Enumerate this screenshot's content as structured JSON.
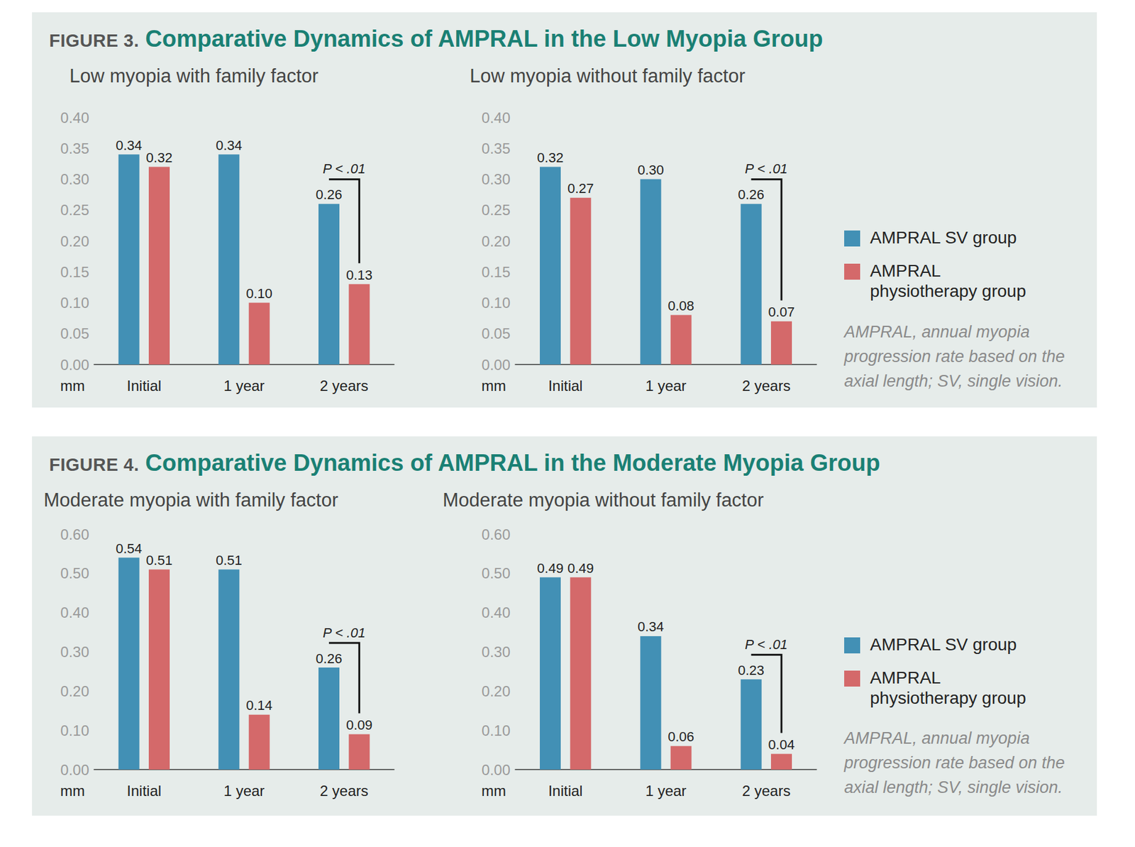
{
  "figures": [
    {
      "label": "FIGURE 3.",
      "title": "Comparative Dynamics of AMPRAL in the Low Myopia Group",
      "note": "AMPRAL, annual myopia progression rate based on the axial length; SV, single vision."
    },
    {
      "label": "FIGURE 4.",
      "title": "Comparative Dynamics of AMPRAL in the Moderate Myopia Group",
      "note": "AMPRAL, annual myopia progression rate based on the axial length; SV, single vision."
    }
  ],
  "chart_data": [
    {
      "type": "bar",
      "title": "Low myopia with family factor",
      "ylabel": "mm",
      "categories": [
        "Initial",
        "1 year",
        "2 years"
      ],
      "series": [
        {
          "name": "AMPRAL SV group",
          "color": "#4290b5",
          "values": [
            0.34,
            0.34,
            0.26
          ],
          "value_labels": [
            "0.34",
            "0.34",
            "0.26"
          ]
        },
        {
          "name": "AMPRAL physiotherapy group",
          "color": "#d4696a",
          "values": [
            0.32,
            0.1,
            0.13
          ],
          "value_labels": [
            "0.32",
            "0.10",
            "0.13"
          ]
        }
      ],
      "ylim": [
        0,
        0.4
      ],
      "yticks": [
        {
          "value": 0,
          "label": "0.00"
        },
        {
          "value": 0.05,
          "label": "0.05"
        },
        {
          "value": 0.1,
          "label": "0.10"
        },
        {
          "value": 0.15,
          "label": "0.15"
        },
        {
          "value": 0.2,
          "label": "0.20"
        },
        {
          "value": 0.25,
          "label": "0.25"
        },
        {
          "value": 0.3,
          "label": "0.30"
        },
        {
          "value": 0.35,
          "label": "0.35"
        },
        {
          "value": 0.4,
          "label": "0.40"
        }
      ],
      "grid": false,
      "data_labels": true,
      "annotations": [
        {
          "text": "P < .01",
          "category": "2 years"
        }
      ]
    },
    {
      "type": "bar",
      "title": "Low myopia without family factor",
      "ylabel": "mm",
      "categories": [
        "Initial",
        "1 year",
        "2 years"
      ],
      "series": [
        {
          "name": "AMPRAL SV group",
          "color": "#4290b5",
          "values": [
            0.32,
            0.3,
            0.26
          ],
          "value_labels": [
            "0.32",
            "0.30",
            "0.26"
          ]
        },
        {
          "name": "AMPRAL physiotherapy group",
          "color": "#d4696a",
          "values": [
            0.27,
            0.08,
            0.07
          ],
          "value_labels": [
            "0.27",
            "0.08",
            "0.07"
          ]
        }
      ],
      "ylim": [
        0,
        0.4
      ],
      "yticks": [
        {
          "value": 0,
          "label": "0.00"
        },
        {
          "value": 0.05,
          "label": "0.05"
        },
        {
          "value": 0.1,
          "label": "0.10"
        },
        {
          "value": 0.15,
          "label": "0.15"
        },
        {
          "value": 0.2,
          "label": "0.20"
        },
        {
          "value": 0.25,
          "label": "0.25"
        },
        {
          "value": 0.3,
          "label": "0.30"
        },
        {
          "value": 0.35,
          "label": "0.35"
        },
        {
          "value": 0.4,
          "label": "0.40"
        }
      ],
      "grid": false,
      "data_labels": true,
      "annotations": [
        {
          "text": "P < .01",
          "category": "2 years"
        }
      ]
    },
    {
      "type": "bar",
      "title": "Moderate myopia with family factor",
      "ylabel": "mm",
      "categories": [
        "Initial",
        "1 year",
        "2 years"
      ],
      "series": [
        {
          "name": "AMPRAL SV group",
          "color": "#4290b5",
          "values": [
            0.54,
            0.51,
            0.26
          ],
          "value_labels": [
            "0.54",
            "0.51",
            "0.26"
          ]
        },
        {
          "name": "AMPRAL physiotherapy group",
          "color": "#d4696a",
          "values": [
            0.51,
            0.14,
            0.09
          ],
          "value_labels": [
            "0.51",
            "0.14",
            "0.09"
          ]
        }
      ],
      "ylim": [
        0,
        0.6
      ],
      "yticks": [
        {
          "value": 0,
          "label": "0.00"
        },
        {
          "value": 0.1,
          "label": "0.10"
        },
        {
          "value": 0.2,
          "label": "0.20"
        },
        {
          "value": 0.3,
          "label": "0.30"
        },
        {
          "value": 0.4,
          "label": "0.40"
        },
        {
          "value": 0.5,
          "label": "0.50"
        },
        {
          "value": 0.6,
          "label": "0.60"
        }
      ],
      "grid": false,
      "data_labels": true,
      "annotations": [
        {
          "text": "P < .01",
          "category": "2 years"
        }
      ]
    },
    {
      "type": "bar",
      "title": "Moderate myopia without family factor",
      "ylabel": "mm",
      "categories": [
        "Initial",
        "1 year",
        "2 years"
      ],
      "series": [
        {
          "name": "AMPRAL SV group",
          "color": "#4290b5",
          "values": [
            0.49,
            0.34,
            0.23
          ],
          "value_labels": [
            "0.49",
            "0.34",
            "0.23"
          ]
        },
        {
          "name": "AMPRAL physiotherapy group",
          "color": "#d4696a",
          "values": [
            0.49,
            0.06,
            0.04
          ],
          "value_labels": [
            "0.49",
            "0.06",
            "0.04"
          ]
        }
      ],
      "ylim": [
        0,
        0.6
      ],
      "yticks": [
        {
          "value": 0,
          "label": "0.00"
        },
        {
          "value": 0.1,
          "label": "0.10"
        },
        {
          "value": 0.2,
          "label": "0.20"
        },
        {
          "value": 0.3,
          "label": "0.30"
        },
        {
          "value": 0.4,
          "label": "0.40"
        },
        {
          "value": 0.5,
          "label": "0.50"
        },
        {
          "value": 0.6,
          "label": "0.60"
        }
      ],
      "grid": false,
      "data_labels": true,
      "annotations": [
        {
          "text": "P < .01",
          "category": "2 years"
        }
      ]
    }
  ]
}
